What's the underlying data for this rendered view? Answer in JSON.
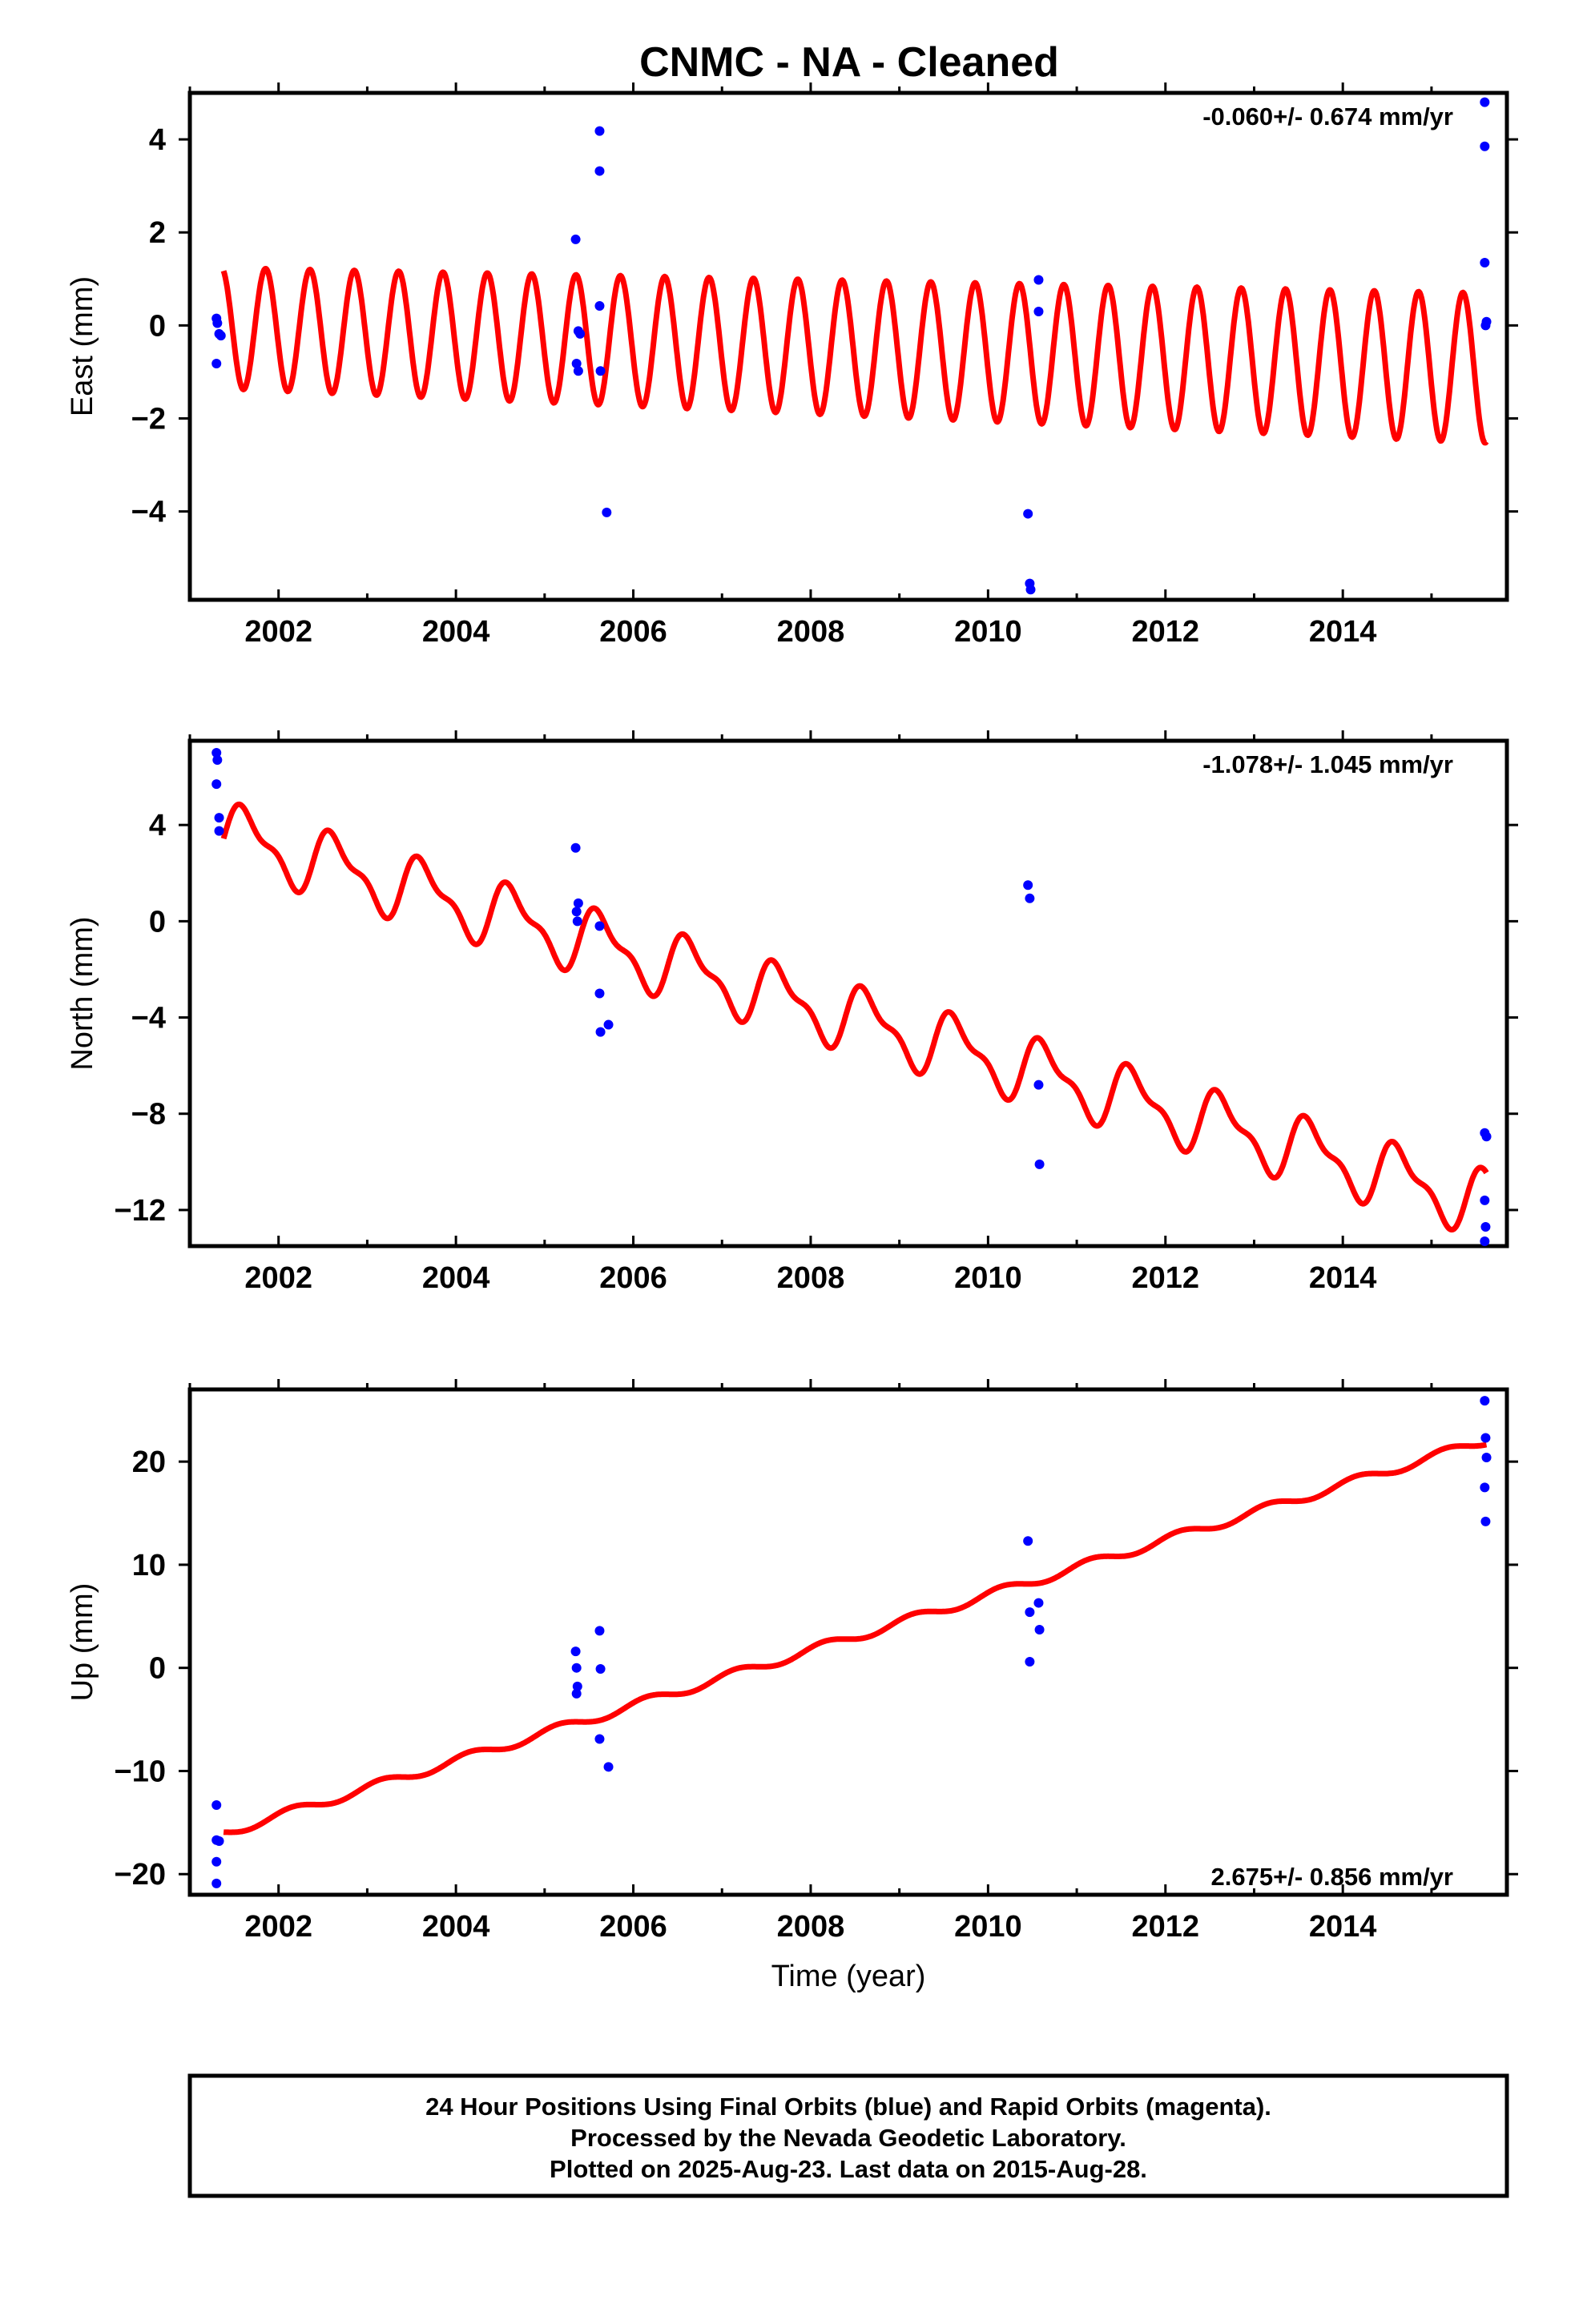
{
  "chart_data": {
    "title": "CNMC  - NA - Cleaned",
    "footer": [
      "24 Hour Positions Using Final Orbits (blue) and Rapid Orbits (magenta).",
      "Processed by the Nevada Geodetic Laboratory.",
      "Plotted on 2025-Aug-23. Last data on 2015-Aug-28."
    ],
    "xlim": [
      2001.0,
      2015.85
    ],
    "x_ticks": [
      2002,
      2004,
      2006,
      2008,
      2010,
      2012,
      2014
    ],
    "x_tick_labels": [
      "2002",
      "2004",
      "2006",
      "2008",
      "2010",
      "2012",
      "2014"
    ],
    "colors": {
      "points": "#0000ff",
      "model": "#ff0000",
      "frame": "#000000"
    },
    "panels": [
      {
        "type": "scatter",
        "ylabel": "East (mm)",
        "xlabel": "",
        "ylim": [
          -5.9,
          5.0
        ],
        "y_ticks": [
          -4,
          -2,
          0,
          2,
          4
        ],
        "y_tick_labels": [
          "−4",
          "−2",
          "0",
          "2",
          "4"
        ],
        "rate": "-0.060+/- 0.674 mm/yr",
        "rate_position": "top-right",
        "points": [
          [
            2001.3,
            0.15
          ],
          [
            2001.31,
            0.05
          ],
          [
            2001.33,
            -0.18
          ],
          [
            2001.35,
            -0.22
          ],
          [
            2001.3,
            -0.82
          ],
          [
            2005.35,
            1.85
          ],
          [
            2005.38,
            -0.12
          ],
          [
            2005.4,
            -0.18
          ],
          [
            2005.36,
            -0.82
          ],
          [
            2005.38,
            -0.98
          ],
          [
            2005.62,
            4.18
          ],
          [
            2005.62,
            3.32
          ],
          [
            2005.62,
            0.42
          ],
          [
            2005.63,
            -0.98
          ],
          [
            2005.7,
            -4.02
          ],
          [
            2010.45,
            -4.05
          ],
          [
            2010.47,
            -5.55
          ],
          [
            2010.48,
            -5.68
          ],
          [
            2010.57,
            0.98
          ],
          [
            2010.57,
            0.3
          ],
          [
            2015.6,
            4.8
          ],
          [
            2015.6,
            3.85
          ],
          [
            2015.6,
            1.35
          ],
          [
            2015.62,
            0.08
          ],
          [
            2015.61,
            0.0
          ]
        ],
        "model": {
          "start": 2001.38,
          "end": 2015.62,
          "offset": -0.06,
          "trend": -0.06,
          "amp_a": 1.3,
          "amp_b": 0.022,
          "period": 0.5,
          "phase": 3.4
        }
      },
      {
        "type": "scatter",
        "ylabel": "North (mm)",
        "xlabel": "",
        "ylim": [
          -13.5,
          7.5
        ],
        "y_ticks": [
          -12,
          -8,
          -4,
          0,
          4
        ],
        "y_tick_labels": [
          "−12",
          "−8",
          "−4",
          "0",
          "4"
        ],
        "rate": "-1.078+/- 1.045 mm/yr",
        "rate_position": "top-right",
        "points": [
          [
            2001.3,
            7.0
          ],
          [
            2001.31,
            6.7
          ],
          [
            2001.3,
            5.7
          ],
          [
            2001.33,
            4.3
          ],
          [
            2001.33,
            3.75
          ],
          [
            2005.35,
            3.05
          ],
          [
            2005.38,
            0.75
          ],
          [
            2005.36,
            0.4
          ],
          [
            2005.37,
            0.0
          ],
          [
            2005.62,
            -0.2
          ],
          [
            2005.62,
            -3.0
          ],
          [
            2005.63,
            -4.6
          ],
          [
            2005.72,
            -4.3
          ],
          [
            2010.45,
            1.5
          ],
          [
            2010.47,
            0.95
          ],
          [
            2010.57,
            -6.8
          ],
          [
            2010.58,
            -10.1
          ],
          [
            2015.6,
            -8.8
          ],
          [
            2015.62,
            -8.95
          ],
          [
            2015.6,
            -11.6
          ],
          [
            2015.61,
            -12.7
          ],
          [
            2015.6,
            -13.3
          ]
        ],
        "model": {
          "start": 2001.38,
          "end": 2015.62,
          "offset": 3.6,
          "trend": -1.078,
          "amp_a": 1.2,
          "amp_b": 0.0,
          "period": 1.0,
          "phase": 3.8,
          "amp2": 0.5,
          "period2": 0.5,
          "phase2": 1.4
        }
      },
      {
        "type": "scatter",
        "ylabel": "Up (mm)",
        "xlabel": "Time (year)",
        "ylim": [
          -22,
          27
        ],
        "y_ticks": [
          -20,
          -10,
          0,
          10,
          20
        ],
        "y_tick_labels": [
          "−20",
          "−10",
          "0",
          "10",
          "20"
        ],
        "rate": "2.675+/- 0.856 mm/yr",
        "rate_position": "bottom-right",
        "points": [
          [
            2001.3,
            -13.3
          ],
          [
            2001.3,
            -16.7
          ],
          [
            2001.33,
            -16.8
          ],
          [
            2001.3,
            -18.8
          ],
          [
            2001.3,
            -20.9
          ],
          [
            2005.35,
            1.6
          ],
          [
            2005.36,
            0.0
          ],
          [
            2005.37,
            -1.8
          ],
          [
            2005.36,
            -2.5
          ],
          [
            2005.62,
            3.6
          ],
          [
            2005.63,
            -0.1
          ],
          [
            2005.62,
            -6.9
          ],
          [
            2005.72,
            -9.6
          ],
          [
            2010.45,
            12.3
          ],
          [
            2010.47,
            5.4
          ],
          [
            2010.47,
            0.6
          ],
          [
            2010.57,
            6.3
          ],
          [
            2010.58,
            3.7
          ],
          [
            2015.6,
            25.9
          ],
          [
            2015.61,
            22.3
          ],
          [
            2015.62,
            20.4
          ],
          [
            2015.6,
            17.5
          ],
          [
            2015.61,
            14.2
          ]
        ],
        "model": {
          "start": 2001.38,
          "end": 2015.62,
          "offset": -16.0,
          "trend": 2.675,
          "amp_a": 0.45,
          "amp_b": 0.0,
          "period": 1.0,
          "phase": 0.6
        }
      }
    ]
  }
}
